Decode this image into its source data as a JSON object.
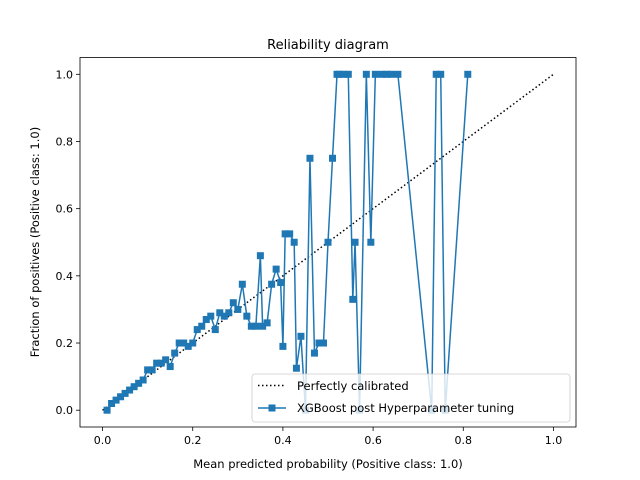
{
  "chart_data": {
    "type": "line",
    "title": "Reliability diagram",
    "xlabel": "Mean predicted probability (Positive class: 1.0)",
    "ylabel": "Fraction of positives (Positive class: 1.0)",
    "xlim": [
      -0.05,
      1.05
    ],
    "ylim": [
      -0.05,
      1.05
    ],
    "xticks": [
      "0.0",
      "0.2",
      "0.4",
      "0.6",
      "0.8",
      "1.0"
    ],
    "yticks": [
      "0.0",
      "0.2",
      "0.4",
      "0.6",
      "0.8",
      "1.0"
    ],
    "grid": false,
    "legend_position": "lower-right",
    "series": [
      {
        "name": "Perfectly calibrated",
        "style": "dotted",
        "color": "#000000",
        "x": [
          0.0,
          1.0
        ],
        "y": [
          0.0,
          1.0
        ]
      },
      {
        "name": "XGBoost post Hyperparameter tuning",
        "style": "solid-square-markers",
        "color": "#1f77b4",
        "x": [
          0.01,
          0.02,
          0.03,
          0.04,
          0.05,
          0.06,
          0.07,
          0.08,
          0.09,
          0.1,
          0.11,
          0.12,
          0.13,
          0.14,
          0.15,
          0.16,
          0.17,
          0.18,
          0.19,
          0.2,
          0.21,
          0.22,
          0.23,
          0.24,
          0.25,
          0.26,
          0.27,
          0.28,
          0.29,
          0.3,
          0.31,
          0.32,
          0.33,
          0.34,
          0.35,
          0.355,
          0.365,
          0.375,
          0.385,
          0.395,
          0.4,
          0.405,
          0.415,
          0.425,
          0.43,
          0.44,
          0.45,
          0.46,
          0.47,
          0.48,
          0.49,
          0.5,
          0.51,
          0.52,
          0.525,
          0.535,
          0.545,
          0.555,
          0.56,
          0.57,
          0.585,
          0.595,
          0.605,
          0.62,
          0.63,
          0.64,
          0.655,
          0.73,
          0.74,
          0.75,
          0.76,
          0.81
        ],
        "y": [
          0.0,
          0.02,
          0.03,
          0.04,
          0.05,
          0.06,
          0.07,
          0.08,
          0.09,
          0.12,
          0.12,
          0.14,
          0.14,
          0.15,
          0.13,
          0.17,
          0.2,
          0.2,
          0.19,
          0.2,
          0.24,
          0.25,
          0.27,
          0.28,
          0.24,
          0.29,
          0.28,
          0.29,
          0.32,
          0.3,
          0.375,
          0.28,
          0.25,
          0.25,
          0.46,
          0.25,
          0.26,
          0.375,
          0.42,
          0.38,
          0.19,
          0.525,
          0.525,
          0.5,
          0.125,
          0.22,
          0.0,
          0.75,
          0.17,
          0.2,
          0.2,
          0.5,
          0.75,
          1.0,
          1.0,
          1.0,
          1.0,
          0.33,
          0.5,
          0.0,
          1.0,
          0.5,
          1.0,
          1.0,
          1.0,
          1.0,
          1.0,
          0.0,
          1.0,
          1.0,
          0.0,
          1.0
        ]
      }
    ]
  }
}
